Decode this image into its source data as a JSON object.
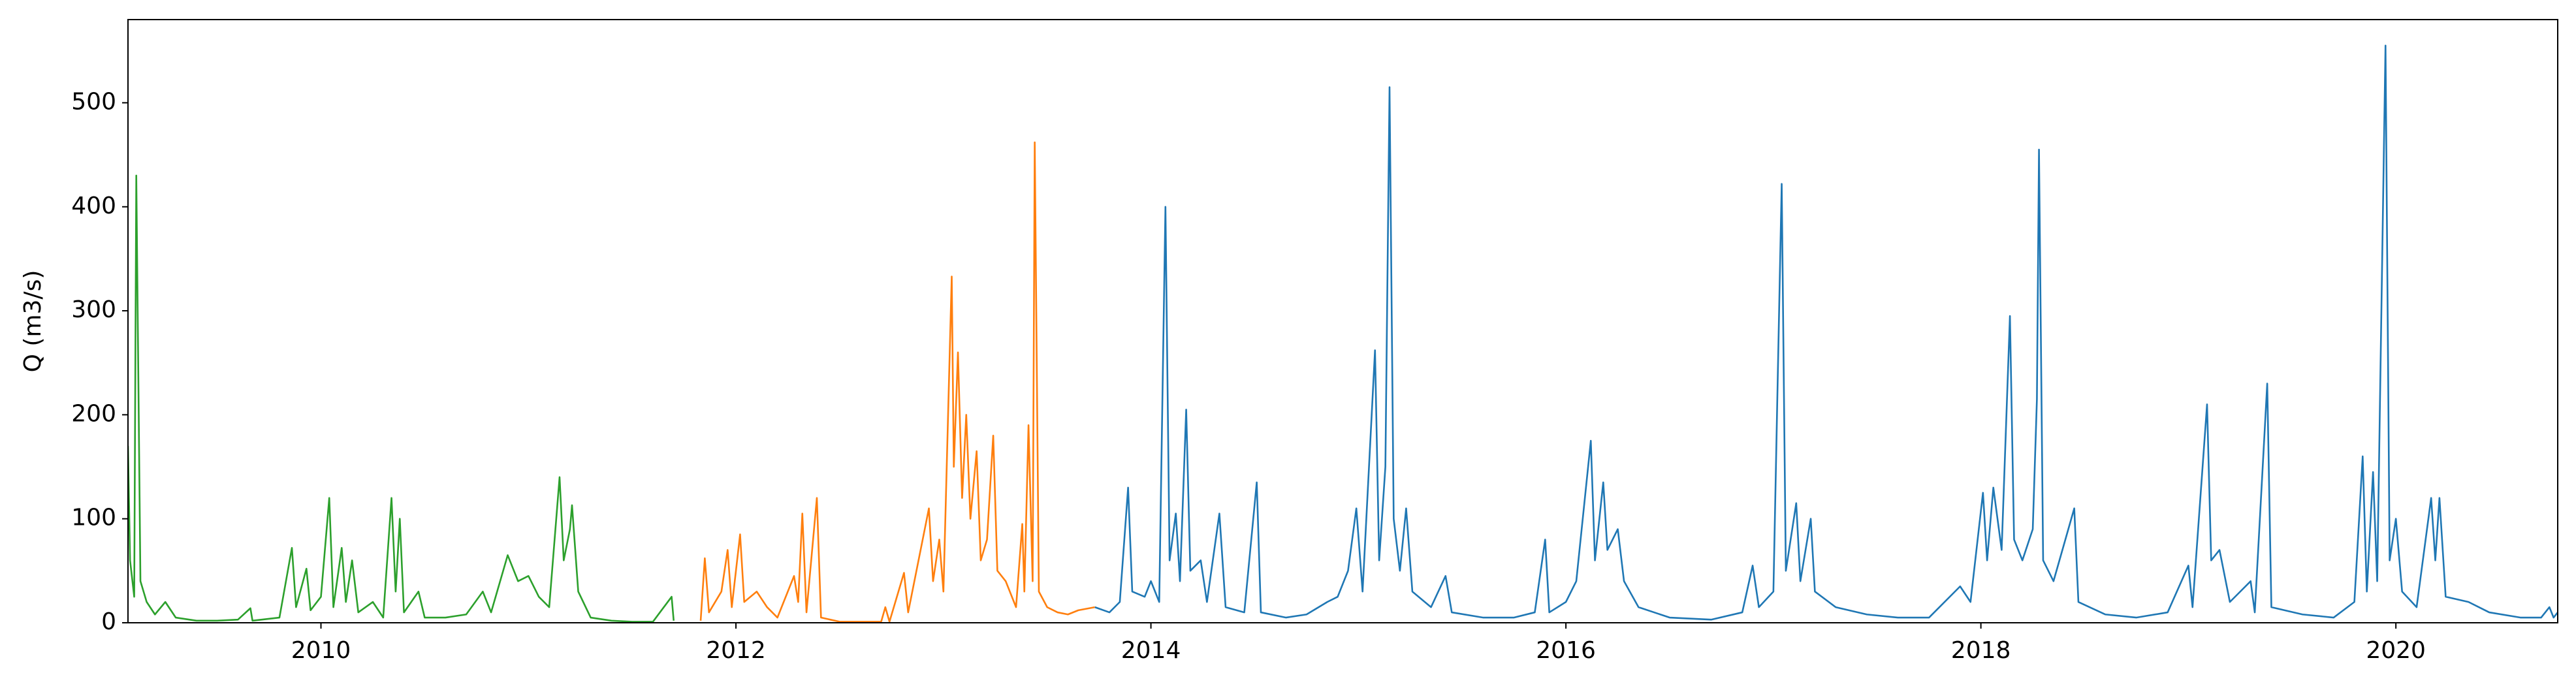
{
  "chart_data": {
    "type": "line",
    "ylabel": "Q (m3/s)",
    "xlim": [
      2009.07,
      2020.78
    ],
    "xticks": [
      2010,
      2012,
      2014,
      2016,
      2018,
      2020
    ],
    "ylim": [
      0,
      580
    ],
    "yticks": [
      0,
      100,
      200,
      300,
      400,
      500
    ],
    "grid": false,
    "series": [
      {
        "color": "#2ca02c",
        "x": [
          2009.07,
          2009.08,
          2009.1,
          2009.11,
          2009.13,
          2009.16,
          2009.2,
          2009.25,
          2009.3,
          2009.4,
          2009.5,
          2009.6,
          2009.66,
          2009.67,
          2009.8,
          2009.86,
          2009.88,
          2009.93,
          2009.95,
          2010.0,
          2010.04,
          2010.06,
          2010.1,
          2010.12,
          2010.15,
          2010.18,
          2010.25,
          2010.3,
          2010.34,
          2010.36,
          2010.38,
          2010.4,
          2010.47,
          2010.5,
          2010.6,
          2010.7,
          2010.78,
          2010.82,
          2010.9,
          2010.95,
          2011.0,
          2011.05,
          2011.1,
          2011.15,
          2011.17,
          2011.2,
          2011.21,
          2011.24,
          2011.3,
          2011.4,
          2011.5,
          2011.6,
          2011.69,
          2011.7
        ],
        "values": [
          170,
          60,
          25,
          430,
          40,
          20,
          8,
          20,
          5,
          2,
          2,
          3,
          14,
          2,
          5,
          72,
          15,
          52,
          12,
          25,
          120,
          15,
          72,
          20,
          60,
          10,
          20,
          5,
          120,
          30,
          100,
          10,
          30,
          5,
          5,
          8,
          30,
          10,
          65,
          40,
          45,
          25,
          15,
          140,
          60,
          90,
          113,
          30,
          5,
          2,
          1,
          1,
          25,
          2
        ]
      },
      {
        "color": "#ff7f0e",
        "x": [
          2011.83,
          2011.85,
          2011.87,
          2011.93,
          2011.96,
          2011.98,
          2012.02,
          2012.04,
          2012.1,
          2012.15,
          2012.2,
          2012.28,
          2012.3,
          2012.32,
          2012.34,
          2012.39,
          2012.41,
          2012.5,
          2012.6,
          2012.7,
          2012.72,
          2012.74,
          2012.81,
          2012.83,
          2012.88,
          2012.93,
          2012.95,
          2012.98,
          2013.0,
          2013.04,
          2013.05,
          2013.07,
          2013.09,
          2013.11,
          2013.13,
          2013.16,
          2013.18,
          2013.21,
          2013.24,
          2013.26,
          2013.3,
          2013.35,
          2013.38,
          2013.39,
          2013.41,
          2013.43,
          2013.44,
          2013.46,
          2013.5,
          2013.55,
          2013.6,
          2013.65,
          2013.73
        ],
        "values": [
          2,
          62,
          10,
          30,
          70,
          15,
          85,
          20,
          30,
          15,
          5,
          45,
          20,
          105,
          10,
          120,
          5,
          1,
          1,
          1,
          15,
          1,
          48,
          10,
          60,
          110,
          40,
          80,
          30,
          333,
          150,
          260,
          120,
          200,
          100,
          165,
          60,
          80,
          180,
          50,
          40,
          15,
          95,
          30,
          190,
          40,
          462,
          30,
          15,
          10,
          8,
          12,
          15
        ]
      },
      {
        "color": "#1f77b4",
        "x": [
          2013.73,
          2013.8,
          2013.85,
          2013.89,
          2013.91,
          2013.97,
          2014.0,
          2014.04,
          2014.07,
          2014.09,
          2014.12,
          2014.14,
          2014.17,
          2014.19,
          2014.24,
          2014.27,
          2014.33,
          2014.36,
          2014.45,
          2014.51,
          2014.53,
          2014.65,
          2014.75,
          2014.85,
          2014.9,
          2014.95,
          2014.99,
          2015.02,
          2015.08,
          2015.1,
          2015.13,
          2015.15,
          2015.17,
          2015.2,
          2015.23,
          2015.26,
          2015.35,
          2015.42,
          2015.45,
          2015.6,
          2015.75,
          2015.85,
          2015.9,
          2015.92,
          2016.0,
          2016.05,
          2016.12,
          2016.14,
          2016.18,
          2016.2,
          2016.25,
          2016.28,
          2016.35,
          2016.5,
          2016.7,
          2016.85,
          2016.9,
          2016.93,
          2017.0,
          2017.04,
          2017.06,
          2017.11,
          2017.13,
          2017.18,
          2017.2,
          2017.3,
          2017.45,
          2017.6,
          2017.75,
          2017.9,
          2017.95,
          2018.01,
          2018.03,
          2018.06,
          2018.1,
          2018.14,
          2018.16,
          2018.2,
          2018.25,
          2018.27,
          2018.28,
          2018.3,
          2018.35,
          2018.45,
          2018.47,
          2018.6,
          2018.75,
          2018.9,
          2019.0,
          2019.02,
          2019.09,
          2019.11,
          2019.15,
          2019.2,
          2019.3,
          2019.32,
          2019.38,
          2019.4,
          2019.55,
          2019.7,
          2019.8,
          2019.84,
          2019.86,
          2019.89,
          2019.91,
          2019.95,
          2019.97,
          2020.0,
          2020.03,
          2020.1,
          2020.17,
          2020.19,
          2020.21,
          2020.24,
          2020.35,
          2020.45,
          2020.6,
          2020.7,
          2020.74,
          2020.76,
          2020.78
        ],
        "values": [
          15,
          10,
          20,
          130,
          30,
          25,
          40,
          20,
          400,
          60,
          105,
          40,
          205,
          50,
          60,
          20,
          105,
          15,
          10,
          135,
          10,
          5,
          8,
          20,
          25,
          50,
          110,
          30,
          262,
          60,
          150,
          515,
          100,
          50,
          110,
          30,
          15,
          45,
          10,
          5,
          5,
          10,
          80,
          10,
          20,
          40,
          175,
          60,
          135,
          70,
          90,
          40,
          15,
          5,
          3,
          10,
          55,
          15,
          30,
          422,
          50,
          115,
          40,
          100,
          30,
          15,
          8,
          5,
          5,
          35,
          20,
          125,
          60,
          130,
          70,
          295,
          80,
          60,
          90,
          215,
          455,
          60,
          40,
          110,
          20,
          8,
          5,
          10,
          55,
          15,
          210,
          60,
          70,
          20,
          40,
          10,
          230,
          15,
          8,
          5,
          20,
          160,
          30,
          145,
          40,
          555,
          60,
          100,
          30,
          15,
          120,
          60,
          120,
          25,
          20,
          10,
          5,
          5,
          15,
          5,
          10
        ]
      }
    ]
  }
}
